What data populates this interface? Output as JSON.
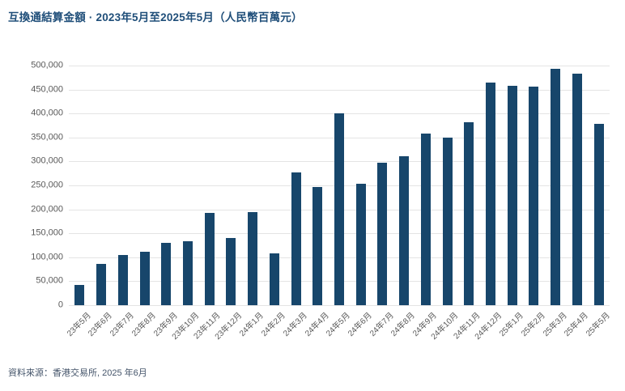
{
  "title": "互換通結算金額 · 2023年5月至2025年5月（人民幣百萬元）",
  "footer": "資料來源：香港交易所, 2025 年6月",
  "colors": {
    "bar": "#17466b",
    "title": "#1f4e79",
    "axis_label": "#595959",
    "gridline": "#e4e4e4",
    "footer": "#44546a",
    "background": "#ffffff"
  },
  "chart_data": {
    "type": "bar",
    "title": "互換通結算金額 · 2023年5月至2025年5月（人民幣百萬元）",
    "source": "資料來源：香港交易所, 2025 年6月",
    "categories": [
      "23年5月",
      "23年6月",
      "23年7月",
      "23年8月",
      "23年9月",
      "23年10月",
      "23年11月",
      "23年12月",
      "24年1月",
      "24年2月",
      "24年3月",
      "24年4月",
      "24年5月",
      "24年6月",
      "24年7月",
      "24年8月",
      "24年9月",
      "24年10月",
      "24年11月",
      "24年12月",
      "25年1月",
      "25年2月",
      "25年3月",
      "25年4月",
      "25年5月"
    ],
    "values": [
      43000,
      86000,
      105000,
      112000,
      130000,
      134000,
      192000,
      140000,
      195000,
      108000,
      277000,
      246000,
      401000,
      254000,
      298000,
      311000,
      358000,
      350000,
      382000,
      465000,
      458000,
      456000,
      494000,
      483000,
      378000
    ],
    "xlabel": "",
    "ylabel": "",
    "ylim": [
      0,
      500000
    ],
    "ytick_step": 50000,
    "ytick_labels": [
      "0",
      "50,000",
      "100,000",
      "150,000",
      "200,000",
      "250,000",
      "300,000",
      "350,000",
      "400,000",
      "450,000",
      "500,000"
    ],
    "grid": "horizontal",
    "legend": "none"
  }
}
